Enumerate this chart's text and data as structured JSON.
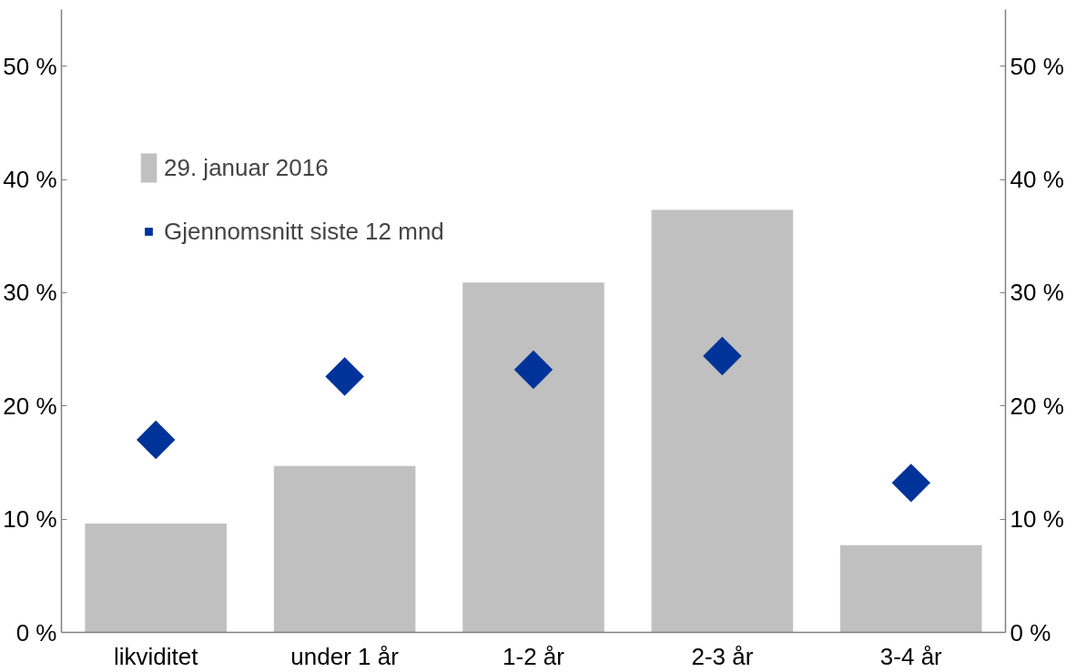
{
  "chart_data": {
    "type": "bar",
    "categories": [
      "likviditet",
      "under 1 år",
      "1-2 år",
      "2-3 år",
      "3-4 år"
    ],
    "series": [
      {
        "name": "29. januar 2016",
        "color": "#c0c0c0",
        "values": [
          9.6,
          14.7,
          30.9,
          37.3,
          7.7
        ]
      },
      {
        "name": "Gjennomsnitt siste 12 mnd",
        "type": "scatter",
        "marker": "diamond",
        "color": "#003399",
        "values": [
          17.0,
          22.6,
          23.2,
          24.4,
          13.2
        ]
      }
    ],
    "ylim": [
      0,
      55
    ],
    "yticks": [
      {
        "value": 0,
        "label": "0 %"
      },
      {
        "value": 10,
        "label": "10 %"
      },
      {
        "value": 20,
        "label": "20 %"
      },
      {
        "value": 30,
        "label": "30 %"
      },
      {
        "value": 40,
        "label": "40 %"
      },
      {
        "value": 50,
        "label": "50 %"
      }
    ],
    "y2lim": [
      0,
      55
    ],
    "y2ticks": [
      {
        "value": 0,
        "label": "0 %"
      },
      {
        "value": 10,
        "label": "10 %"
      },
      {
        "value": 20,
        "label": "20 %"
      },
      {
        "value": 30,
        "label": "30 %"
      },
      {
        "value": 40,
        "label": "40 %"
      },
      {
        "value": 50,
        "label": "50 %"
      }
    ],
    "legend": "top left"
  }
}
